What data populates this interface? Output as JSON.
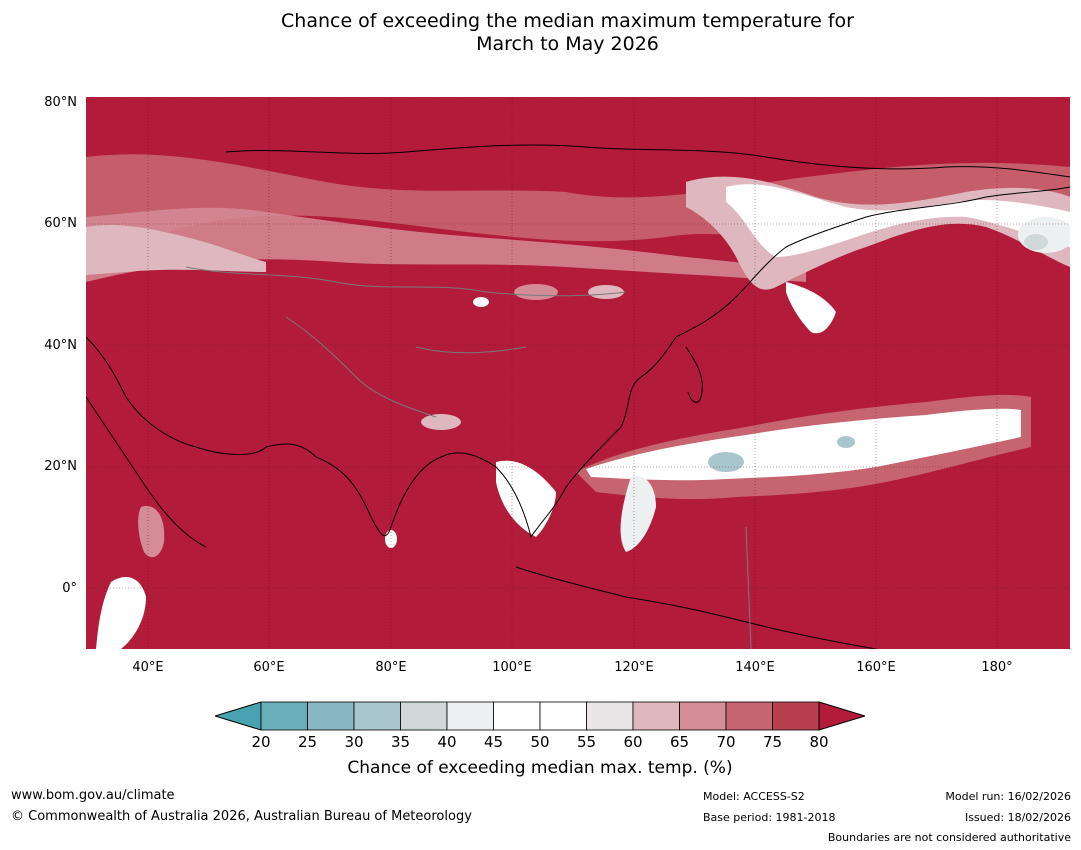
{
  "title": {
    "line1": "Chance of exceeding the median maximum temperature for",
    "line2": "March to May 2026"
  },
  "map": {
    "lat_labels": [
      "80°N",
      "60°N",
      "40°N",
      "20°N",
      "0°"
    ],
    "lon_labels": [
      "40°E",
      "60°E",
      "80°E",
      "100°E",
      "120°E",
      "140°E",
      "160°E",
      "180°"
    ],
    "background_color": "#b31b3a"
  },
  "colorbar": {
    "ticks": [
      "20",
      "25",
      "30",
      "35",
      "40",
      "45",
      "50",
      "55",
      "60",
      "65",
      "70",
      "75",
      "80"
    ],
    "colors": [
      "#48a2b0",
      "#6aaebb",
      "#89b8c3",
      "#a9c6cc",
      "#d1d8da",
      "#ecf0f1",
      "#ffffff",
      "#ffffff",
      "#eae6e8",
      "#deb8be",
      "#d48c96",
      "#c66570",
      "#b83f50",
      "#b31b3a"
    ],
    "label": "Chance of exceeding median max. temp. (%)"
  },
  "footer": {
    "website": "www.bom.gov.au/climate",
    "copyright": "© Commonwealth of Australia 2026, Australian Bureau of Meteorology",
    "model": "Model: ACCESS-S2",
    "base_period": "Base period: 1981-2018",
    "model_run": "Model run: 16/02/2026",
    "issued": "Issued: 18/02/2026",
    "boundaries_note": "Boundaries are not considered authoritative"
  }
}
